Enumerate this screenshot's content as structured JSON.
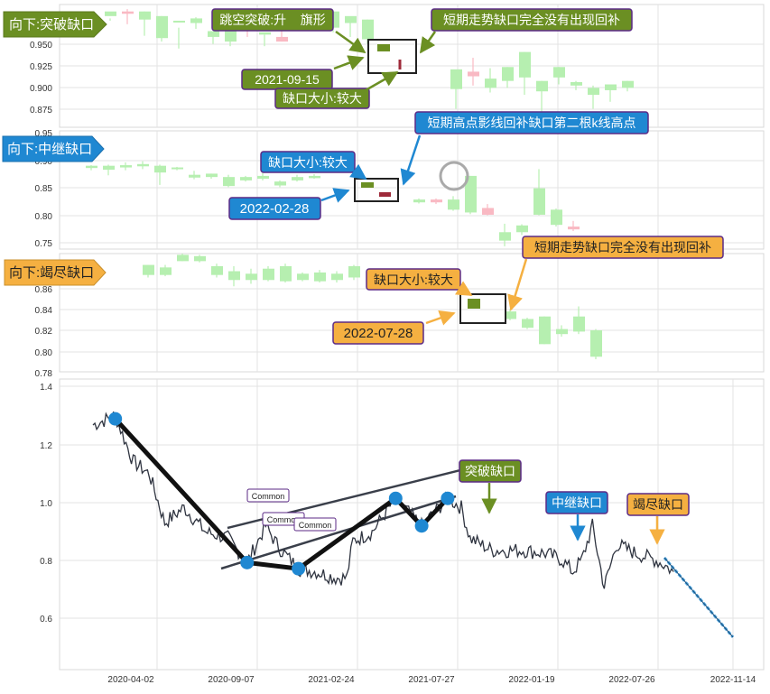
{
  "colors": {
    "green_dark": "#6b8f23",
    "green_text_box": "#6b8f23",
    "blue_box": "#1f88d2",
    "orange_box": "#f5b041",
    "purple_border": "#5b2a86",
    "candle_up": "#b6efb0",
    "candle_down": "#f9b9c3",
    "gap_up": "#6b8f23",
    "gap_down": "#9e2a3a",
    "price_line": "#2f3440",
    "trend_line": "#111111",
    "pivot": "#1f88d2",
    "forecast": "#4aa3df"
  },
  "chart_data": [
    {
      "panel": "breakaway",
      "type": "candlestick",
      "label": "向下:突破缺口",
      "yticks": [
        "0.950",
        "0.925",
        "0.900",
        "0.875"
      ],
      "ylim": [
        0.862,
        0.968
      ],
      "annotations": [
        {
          "text": "跳空突破:升    旗形",
          "style": "green"
        },
        {
          "text": "短期走势缺口完全没有出现回补",
          "style": "green"
        },
        {
          "text": "2021-09-15",
          "style": "green"
        },
        {
          "text": "缺口大小:较大",
          "style": "green"
        }
      ],
      "candles": [
        [
          0.958,
          0.962,
          0.956,
          0.954
        ],
        [
          0.962,
          0.96,
          0.964,
          0.951
        ],
        [
          0.955,
          0.962,
          0.962,
          0.941
        ],
        [
          0.939,
          0.958,
          0.958,
          0.936
        ],
        [
          0.954,
          0.954,
          0.948,
          0.93
        ],
        [
          0.952,
          0.956,
          0.957,
          0.947
        ],
        [
          0.94,
          0.945,
          0.944,
          0.934
        ],
        [
          0.936,
          0.947,
          0.939,
          0.932
        ],
        [
          0.948,
          0.946,
          0.949,
          0.94
        ],
        [
          0.942,
          0.944,
          0.942,
          0.932
        ],
        [
          0.94,
          0.936,
          0.946,
          0.936
        ],
        [
          0.946,
          0.954,
          0.954,
          0.947
        ],
        [
          0.95,
          0.96,
          0.96,
          0.946
        ],
        [
          0.948,
          0.962,
          0.952,
          0.944
        ],
        [
          0.952,
          0.958,
          0.957,
          0.94
        ],
        [
          0.938,
          0.955,
          0.955,
          0.934
        ]
      ],
      "gap_marks": [
        [
          0.944,
          0.948
        ],
        [
          0.935,
          0.939
        ]
      ],
      "late_candles": [
        [
          0.895,
          0.912,
          0.908,
          0.878
        ],
        [
          0.91,
          0.906,
          0.922,
          0.898
        ],
        [
          0.896,
          0.904,
          0.913,
          0.892
        ],
        [
          0.902,
          0.914,
          0.914,
          0.896
        ],
        [
          0.905,
          0.927,
          0.927,
          0.89
        ],
        [
          0.893,
          0.902,
          0.902,
          0.874
        ],
        [
          0.905,
          0.914,
          0.914,
          0.899
        ],
        [
          0.898,
          0.901,
          0.902,
          0.894
        ],
        [
          0.89,
          0.896,
          0.898,
          0.878
        ],
        [
          0.894,
          0.899,
          0.897,
          0.884
        ],
        [
          0.896,
          0.902,
          0.902,
          0.893
        ]
      ]
    },
    {
      "panel": "runaway",
      "type": "candlestick",
      "label": "向下:中继缺口",
      "yticks": [
        "0.95",
        "0.90",
        "0.85",
        "0.80",
        "0.75"
      ],
      "ylim": [
        0.74,
        0.95
      ],
      "annotations": [
        {
          "text": "短期高点影线回补缺口第二根k线高点",
          "style": "blue"
        },
        {
          "text": "缺口大小:较大",
          "style": "blue"
        },
        {
          "text": "2022-02-28",
          "style": "blue"
        }
      ]
    },
    {
      "panel": "exhaustion",
      "type": "candlestick",
      "label": "向下:竭尽缺口",
      "yticks": [
        "0.86",
        "0.84",
        "0.82",
        "0.80",
        "0.78"
      ],
      "ylim": [
        0.778,
        0.872
      ],
      "annotations": [
        {
          "text": "短期走势缺口完全没有出现回补",
          "style": "orange"
        },
        {
          "text": "缺口大小:较大",
          "style": "orange"
        },
        {
          "text": "2022-07-28",
          "style": "orange"
        }
      ]
    },
    {
      "panel": "overview",
      "type": "line",
      "xticks": [
        "2020-04-02",
        "2020-09-07",
        "2021-02-24",
        "2021-07-27",
        "2022-01-19",
        "2022-07-26",
        "2022-11-14"
      ],
      "yticks": [
        "1.4",
        "1.2",
        "1.0",
        "0.8",
        "0.6"
      ],
      "ylim": [
        0.5,
        1.45
      ],
      "pattern_labels": [
        "Common",
        "Common",
        "Common"
      ],
      "gap_labels": [
        {
          "text": "突破缺口",
          "style": "green"
        },
        {
          "text": "中继缺口",
          "style": "blue"
        },
        {
          "text": "竭尽缺口",
          "style": "orange"
        }
      ],
      "pivots": [
        {
          "date": "2020-02-20",
          "value": 1.32
        },
        {
          "date": "2020-09-20",
          "value": 0.85
        },
        {
          "date": "2020-12-12",
          "value": 0.83
        },
        {
          "date": "2021-05-18",
          "value": 1.06
        },
        {
          "date": "2021-06-29",
          "value": 0.97
        },
        {
          "date": "2021-08-10",
          "value": 1.06
        }
      ],
      "forecast_end": {
        "date": "2022-11-05",
        "value": 0.53
      }
    }
  ]
}
